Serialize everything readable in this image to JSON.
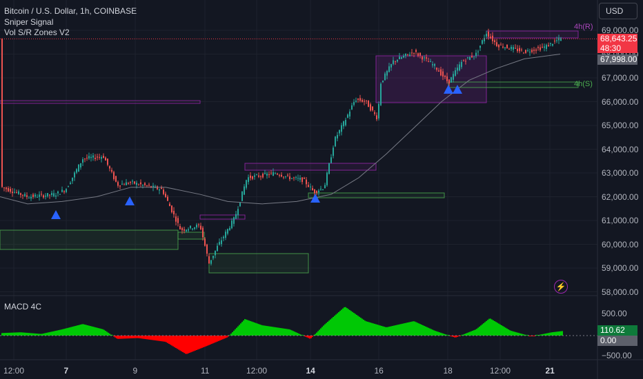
{
  "header": {
    "symbol_title": "Bitcoin / U.S. Dollar, 1h, COINBASE",
    "indicator_1": "Sniper Signal",
    "indicator_2": "Vol S/R Zones V2",
    "currency": "USD"
  },
  "price_axis": {
    "ticks": [
      "69,000.00",
      "68,000.00",
      "67,000.00",
      "66,000.00",
      "65,000.00",
      "64,000.00",
      "63,000.00",
      "62,000.00",
      "61,000.00",
      "60,000.00",
      "59,000.00",
      "58,000.00"
    ],
    "tick_values": [
      69000,
      68000,
      67000,
      66000,
      65000,
      64000,
      63000,
      62000,
      61000,
      60000,
      59000,
      58000
    ]
  },
  "price_tags": {
    "last_price": "68,643.25",
    "countdown": "48:30",
    "ma_price": "67,998.00",
    "last_color": "#f23645",
    "ma_color": "#5d606b"
  },
  "zone_labels": {
    "resistance": "4h(R)",
    "support": "4h(S)"
  },
  "macd_pane": {
    "title": "MACD 4C",
    "ticks": [
      "500.00",
      "−500.00"
    ],
    "value_tag": "110.62",
    "zero_tag": "0.00"
  },
  "time_axis": {
    "labels": [
      {
        "text": "12:00",
        "bold": false
      },
      {
        "text": "7",
        "bold": true
      },
      {
        "text": "9",
        "bold": false
      },
      {
        "text": "11",
        "bold": false
      },
      {
        "text": "12:00",
        "bold": false
      },
      {
        "text": "14",
        "bold": true
      },
      {
        "text": "16",
        "bold": false
      },
      {
        "text": "18",
        "bold": false
      },
      {
        "text": "12:00",
        "bold": false
      },
      {
        "text": "21",
        "bold": true
      }
    ]
  },
  "icons": {
    "alert": "lightning-bolt-icon",
    "signal": "up-triangle-icon"
  },
  "colors": {
    "up": "#26a69a",
    "down": "#ef5350",
    "resistance_zone": "#9c27b0",
    "support_zone": "#4caf50",
    "signal": "#2962ff",
    "macd_up": "#00c805",
    "macd_down": "#ff0000"
  }
}
